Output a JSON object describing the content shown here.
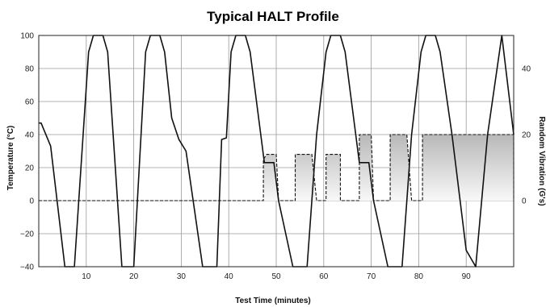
{
  "chart_data": {
    "type": "line",
    "title": "Typical HALT Profile",
    "xlabel": "Test Time (minutes)",
    "ylabel": "Temperature (°C)",
    "y2label": "Random Vibration (G's)",
    "xlim": [
      0,
      100
    ],
    "ylim": [
      -40,
      100
    ],
    "y2lim": [
      -20,
      50
    ],
    "grid": true,
    "x_ticks": [
      "10",
      "20",
      "30",
      "40",
      "50",
      "60",
      "70",
      "80",
      "90"
    ],
    "x_tick_values": [
      10,
      20,
      30,
      40,
      50,
      60,
      70,
      80,
      90
    ],
    "y_ticks": [
      "100",
      "80",
      "60",
      "40",
      "20",
      "0",
      "−20",
      "−40"
    ],
    "y_tick_values": [
      100,
      80,
      60,
      40,
      20,
      0,
      -20,
      -40
    ],
    "y2_ticks": [
      "40",
      "20",
      "0"
    ],
    "y2_tick_values": [
      40,
      20,
      0
    ],
    "series": [
      {
        "name": "",
        "axis": "left",
        "style": "solid",
        "x": [
          0,
          0.5,
          2.5,
          5.5,
          7.5,
          10.5,
          11.5,
          13.5,
          14.5,
          17.5,
          20,
          22.5,
          23.5,
          25.5,
          26.5,
          28,
          29.5,
          31,
          34.5,
          35.5,
          37.5,
          38.5,
          39.5,
          40.5,
          41.5,
          43.5,
          44.5,
          47.5,
          49.5,
          50.5,
          53.5,
          56.5,
          58.5,
          60.5,
          61.5,
          63.5,
          64.5,
          67.5,
          69.5,
          70.5,
          73.5,
          76.5,
          78.5,
          80.5,
          81.5,
          83.5,
          84.5,
          87,
          90,
          92,
          94.5,
          97.5,
          100
        ],
        "y": [
          47,
          47,
          33,
          -40,
          -40,
          90,
          100,
          100,
          90,
          -40,
          -40,
          90,
          100,
          100,
          90,
          50,
          37,
          30,
          -40,
          -40,
          -40,
          37,
          38,
          90,
          100,
          100,
          90,
          23,
          23,
          0,
          -40,
          -40,
          40,
          90,
          100,
          100,
          90,
          23,
          23,
          0,
          -40,
          -40,
          40,
          90,
          100,
          100,
          90,
          40,
          -30,
          -40,
          40,
          100,
          40
        ]
      },
      {
        "name": "",
        "axis": "right",
        "style": "dashed",
        "x": [
          0,
          47.3,
          47.3,
          48,
          50,
          50.5,
          51.5,
          54,
          54,
          55,
          57.5,
          58.5,
          60.5,
          60.5,
          61.5,
          63.5,
          63.5,
          67.5,
          67.5,
          68.5,
          70,
          70.5,
          74,
          74,
          75,
          77.5,
          78.5,
          80.8,
          80.8,
          82,
          100,
          100
        ],
        "y": [
          0,
          0,
          12.5,
          14,
          14,
          0,
          0,
          0,
          14,
          14,
          14,
          0,
          0,
          14,
          14,
          14,
          0,
          0,
          20,
          20,
          20,
          0,
          0,
          20,
          20,
          20,
          0,
          0,
          20,
          20,
          20,
          0
        ]
      }
    ]
  }
}
